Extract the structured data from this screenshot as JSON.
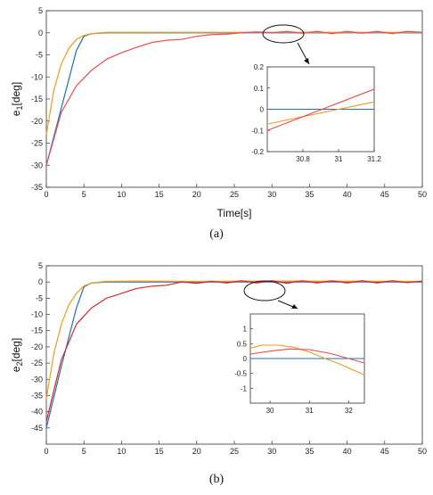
{
  "colors": {
    "blue": "#1f6fb4",
    "orange": "#f29b1d",
    "red": "#ee4c50",
    "darkred": "#d9262b"
  },
  "chart_data": [
    {
      "type": "line",
      "panel_caption": "(a)",
      "xlabel": "Time[s]",
      "ylabel_main": "e",
      "ylabel_sub": "1",
      "ylabel_unit": "[deg]",
      "xlim": [
        0,
        50
      ],
      "ylim": [
        -35,
        5
      ],
      "xticks": [
        "0",
        "5",
        "10",
        "15",
        "20",
        "25",
        "30",
        "35",
        "40",
        "45",
        "50"
      ],
      "yticks": [
        "5",
        "0",
        "-5",
        "-10",
        "-15",
        "-20",
        "-25",
        "-30",
        "-35"
      ],
      "series": [
        {
          "color": "blue",
          "points": [
            [
              0,
              -30
            ],
            [
              2,
              -17
            ],
            [
              4,
              -4
            ],
            [
              5,
              -0.8
            ],
            [
              6,
              -0.2
            ],
            [
              8,
              0
            ],
            [
              50,
              0
            ]
          ]
        },
        {
          "color": "orange",
          "points": [
            [
              0,
              -23
            ],
            [
              1,
              -13
            ],
            [
              2,
              -7
            ],
            [
              3,
              -3.5
            ],
            [
              4,
              -1.5
            ],
            [
              5,
              -0.6
            ],
            [
              6,
              -0.2
            ],
            [
              8,
              0.1
            ],
            [
              12,
              0.1
            ],
            [
              20,
              0.1
            ],
            [
              30,
              0.1
            ],
            [
              50,
              0.1
            ]
          ]
        },
        {
          "color": "red",
          "points": [
            [
              0,
              -30
            ],
            [
              2,
              -18
            ],
            [
              4,
              -12
            ],
            [
              6,
              -8.5
            ],
            [
              8,
              -6
            ],
            [
              10,
              -4.5
            ],
            [
              12,
              -3.3
            ],
            [
              14,
              -2.2
            ],
            [
              16,
              -1.7
            ],
            [
              18,
              -1.5
            ],
            [
              20,
              -0.8
            ],
            [
              22,
              -0.4
            ],
            [
              24,
              -0.3
            ],
            [
              26,
              0
            ],
            [
              28,
              0.2
            ],
            [
              30,
              0
            ],
            [
              32,
              0.3
            ],
            [
              34,
              -0.1
            ],
            [
              36,
              0.3
            ],
            [
              38,
              -0.2
            ],
            [
              40,
              0.3
            ],
            [
              42,
              -0.1
            ],
            [
              44,
              0.3
            ],
            [
              46,
              -0.2
            ],
            [
              48,
              0.3
            ],
            [
              50,
              0.1
            ]
          ]
        }
      ],
      "inset": {
        "xlim": [
          30.6,
          31.2
        ],
        "ylim": [
          -0.2,
          0.2
        ],
        "xticks": [
          "30.8",
          "31",
          "31.2"
        ],
        "yticks": [
          "0.2",
          "0.1",
          "0",
          "-0.1",
          "-0.2"
        ],
        "series": [
          {
            "color": "blue",
            "points": [
              [
                30.6,
                0
              ],
              [
                31.2,
                0
              ]
            ]
          },
          {
            "color": "orange",
            "points": [
              [
                30.6,
                -0.07
              ],
              [
                31.2,
                0.035
              ]
            ]
          },
          {
            "color": "red",
            "points": [
              [
                30.6,
                -0.1
              ],
              [
                31.2,
                0.095
              ]
            ]
          }
        ]
      }
    },
    {
      "type": "line",
      "panel_caption": "(b)",
      "xlabel": "",
      "ylabel_main": "e",
      "ylabel_sub": "2",
      "ylabel_unit": "[deg]",
      "xlim": [
        0,
        50
      ],
      "ylim": [
        -50,
        5
      ],
      "xticks": [
        "0",
        "5",
        "10",
        "15",
        "20",
        "25",
        "30",
        "35",
        "40",
        "45",
        "50"
      ],
      "yticks": [
        "5",
        "0",
        "-5",
        "-10",
        "-15",
        "-20",
        "-25",
        "-30",
        "-35",
        "-40",
        "-45"
      ],
      "series": [
        {
          "color": "blue",
          "points": [
            [
              0,
              -45
            ],
            [
              2,
              -26
            ],
            [
              4,
              -8
            ],
            [
              5,
              -1.5
            ],
            [
              6,
              -0.3
            ],
            [
              8,
              0
            ],
            [
              50,
              0
            ]
          ]
        },
        {
          "color": "orange",
          "points": [
            [
              0,
              -36
            ],
            [
              1,
              -22
            ],
            [
              2,
              -13
            ],
            [
              3,
              -7
            ],
            [
              4,
              -3.5
            ],
            [
              5,
              -1.2
            ],
            [
              6,
              -0.3
            ],
            [
              8,
              0.2
            ],
            [
              12,
              0.3
            ],
            [
              20,
              0.2
            ],
            [
              30,
              0.3
            ],
            [
              50,
              0.2
            ]
          ]
        },
        {
          "color": "darkred",
          "points": [
            [
              0,
              -43
            ],
            [
              2,
              -24
            ],
            [
              4,
              -13
            ],
            [
              6,
              -8
            ],
            [
              8,
              -5
            ],
            [
              10,
              -3.5
            ],
            [
              12,
              -2
            ],
            [
              14,
              -1.3
            ],
            [
              16,
              -1
            ],
            [
              18,
              0
            ],
            [
              20,
              -0.4
            ],
            [
              22,
              0.2
            ],
            [
              24,
              -0.3
            ],
            [
              26,
              0.4
            ],
            [
              28,
              -0.3
            ],
            [
              30,
              0.4
            ],
            [
              32,
              -0.4
            ],
            [
              34,
              0.4
            ],
            [
              36,
              -0.3
            ],
            [
              38,
              0.4
            ],
            [
              40,
              -0.3
            ],
            [
              42,
              0.4
            ],
            [
              44,
              -0.3
            ],
            [
              46,
              0.4
            ],
            [
              48,
              -0.2
            ],
            [
              50,
              0.3
            ]
          ]
        }
      ],
      "inset": {
        "xlim": [
          29.5,
          32.4
        ],
        "ylim": [
          -1.5,
          1.5
        ],
        "xticks": [
          "30",
          "31",
          "32"
        ],
        "yticks": [
          "1",
          "0.5",
          "0",
          "-0.5",
          "-1"
        ],
        "series": [
          {
            "color": "blue",
            "points": [
              [
                29.5,
                0
              ],
              [
                32.4,
                0
              ]
            ]
          },
          {
            "color": "orange",
            "points": [
              [
                29.5,
                0.35
              ],
              [
                29.8,
                0.45
              ],
              [
                30.2,
                0.45
              ],
              [
                30.6,
                0.38
              ],
              [
                31,
                0.22
              ],
              [
                31.4,
                0
              ],
              [
                31.8,
                -0.2
              ],
              [
                32.1,
                -0.38
              ],
              [
                32.4,
                -0.55
              ]
            ]
          },
          {
            "color": "red",
            "points": [
              [
                29.5,
                0.15
              ],
              [
                30,
                0.25
              ],
              [
                30.5,
                0.32
              ],
              [
                31,
                0.3
              ],
              [
                31.5,
                0.18
              ],
              [
                32,
                0
              ],
              [
                32.4,
                -0.15
              ]
            ]
          }
        ]
      }
    }
  ]
}
